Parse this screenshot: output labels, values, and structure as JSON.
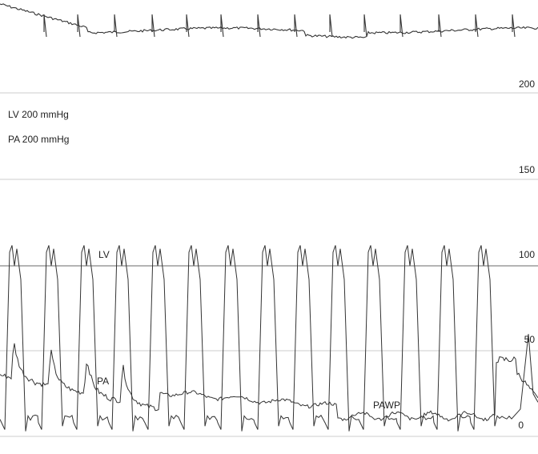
{
  "chart_data": {
    "type": "line",
    "header_lines": [
      "LV 200 mmHg",
      "PA 200 mmHg"
    ],
    "y_scale_unit": "mmHg",
    "yticks": [
      {
        "label": "200",
        "value": 200
      },
      {
        "label": "150",
        "value": 150
      },
      {
        "label": "100",
        "value": 100
      },
      {
        "label": "50",
        "value": 50
      },
      {
        "label": "0",
        "value": 0
      }
    ],
    "grid": true,
    "series": [
      {
        "name": "LV",
        "beat_count": 14,
        "systolic_peak": 112,
        "diastolic_min": 6,
        "color": "#333333"
      },
      {
        "name": "PA",
        "start_pressure": 48,
        "end_pressure": 10,
        "color": "#333333"
      },
      {
        "name": "PAWP",
        "mean_pressure": 12,
        "color": "#333333"
      }
    ],
    "top_trace": {
      "color": "#333333"
    }
  }
}
